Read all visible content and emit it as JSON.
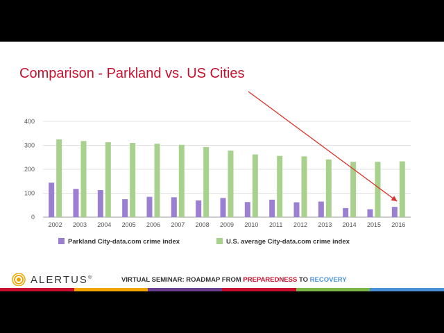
{
  "slide": {
    "title": "Comparison - Parkland vs. US Cities"
  },
  "chart_data": {
    "type": "bar",
    "title": "",
    "xlabel": "",
    "ylabel": "",
    "ylim": [
      0,
      400
    ],
    "yticks": [
      0,
      100,
      200,
      300,
      400
    ],
    "grid": true,
    "legend_placement": "bottom",
    "categories": [
      "2002",
      "2003",
      "2004",
      "2005",
      "2006",
      "2007",
      "2008",
      "2009",
      "2010",
      "2011",
      "2012",
      "2013",
      "2014",
      "2015",
      "2016"
    ],
    "series": [
      {
        "name": "Parkland City-data.com crime index",
        "color": "#9b7fd1",
        "values": [
          144,
          118,
          113,
          75,
          85,
          83,
          70,
          80,
          63,
          73,
          62,
          65,
          38,
          33,
          43
        ]
      },
      {
        "name": "U.S. average City-data.com crime index",
        "color": "#a9d18e",
        "values": [
          325,
          318,
          313,
          310,
          307,
          302,
          293,
          278,
          262,
          256,
          254,
          241,
          231,
          231,
          233
        ]
      }
    ],
    "annotation": {
      "type": "arrow",
      "color": "#d9342b",
      "target_category": "2016"
    }
  },
  "footer": {
    "brand": "ALERTUS",
    "trademark": "®",
    "tagline_prefix": "VIRTUAL SEMINAR: ROADMAP FROM ",
    "tagline_highlight_1": "PREPAREDNESS",
    "tagline_mid": " TO ",
    "tagline_highlight_2": "RECOVERY",
    "stripe_colors": [
      "#c8102e",
      "#f0a500",
      "#6c3e8e",
      "#c8102e",
      "#7ab648",
      "#4a90d9"
    ]
  }
}
